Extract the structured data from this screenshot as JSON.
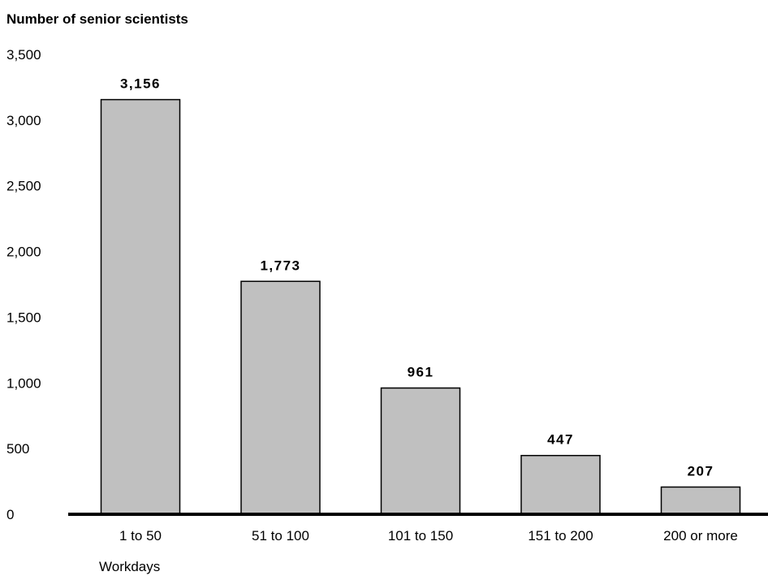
{
  "chart_data": {
    "type": "bar",
    "title": "",
    "ylabel": "Number of senior scientists",
    "xlabel": "Workdays",
    "categories": [
      "1 to 50",
      "51 to 100",
      "101 to 150",
      "151 to 200",
      "200 or more"
    ],
    "values": [
      3156,
      1773,
      961,
      447,
      207
    ],
    "value_labels": [
      "3,156",
      "1,773",
      "961",
      "447",
      "207"
    ],
    "ylim": [
      0,
      3500
    ],
    "yticks": [
      0,
      500,
      1000,
      1500,
      2000,
      2500,
      3000,
      3500
    ],
    "ytick_labels": [
      "0",
      "500",
      "1,000",
      "1,500",
      "2,000",
      "2,500",
      "3,000",
      "3,500"
    ],
    "grid": false,
    "bar_color": "#c0c0c0",
    "bar_edge_color": "#000000"
  }
}
